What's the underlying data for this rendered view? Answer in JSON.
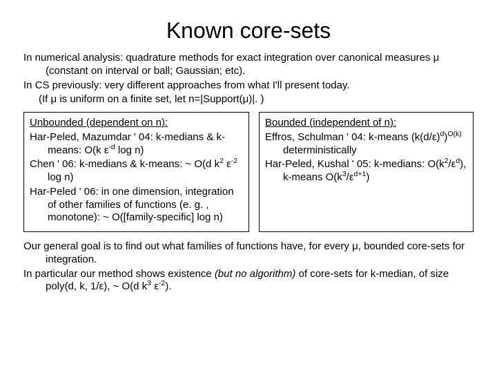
{
  "title": "Known core-sets",
  "intro": {
    "line1a": "In numerical analysis: quadrature methods for exact integration over canonical measures ",
    "mu": "μ",
    "line1b": " (constant on interval or ball; Gaussian; etc).",
    "line2": "In CS previously: very different approaches from what I'll present today.",
    "line3a": "(If ",
    "line3b": " is uniform on a finite set, let n=|Support(",
    "line3c": ")|. )"
  },
  "left": {
    "header": "Unbounded (dependent on n):",
    "e1a": "Har-Peled, Mazumdar ' 04: k-medians & k-means: O(k ",
    "eps": "ε",
    "e1b": " log n)",
    "exp_neg_d": "-d",
    "e2a": "Chen ' 06: k-medians & k-means: ~ O(d k",
    "exp_2": "2",
    "e2b": " ",
    "exp_neg2": "-2",
    "e2c": " log n)",
    "e3": "Har-Peled ' 06: in one dimension, integration of other families of functions (e. g. , monotone): ~ O([family-specific] log n)"
  },
  "right": {
    "header": "Bounded (independent of n):",
    "e1a": "Effros, Schulman ' 04: k-means (k(d/",
    "e1b": ")",
    "exp_d": "d",
    "e1c": ")",
    "exp_Ok": "O(k)",
    "e1d": " deterministically",
    "e2a": "Har-Peled, Kushal ' 05: k-medians: O(k",
    "e2b": "/",
    "e2c": "), k-means O(k",
    "exp_3": "3",
    "e2d": "/",
    "exp_dp1": "d+1",
    "e2e": ")"
  },
  "footer": {
    "f1a": "Our general goal is to find out what families of functions have, for every ",
    "f1b": ", bounded core-sets for integration.",
    "f2a": "In particular our method shows existence ",
    "f2ital": "(but no algorithm)",
    "f2b": " of core-sets for k-median, of size poly(d, k, 1/",
    "f2c": "), ~ O(d k",
    "exp_3": "3",
    "f2d": " ",
    "exp_neg2": "-2",
    "f2e": ")."
  },
  "colors": {
    "text": "#000000",
    "background": "#ffffff",
    "border": "#000000"
  },
  "fontsize": {
    "title": 32,
    "body": 15
  }
}
